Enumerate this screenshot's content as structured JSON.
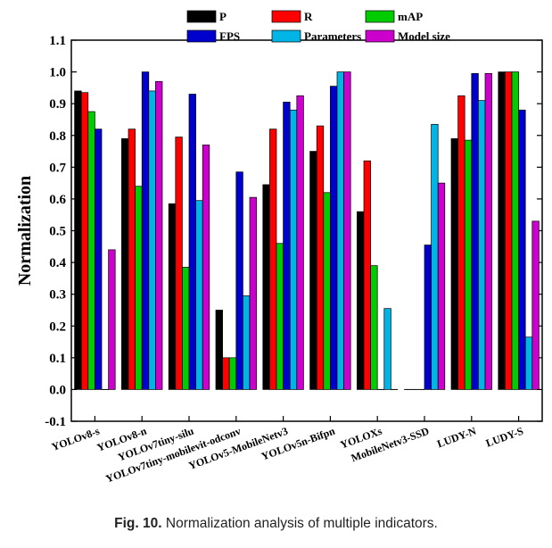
{
  "caption": {
    "label": "Fig. 10.",
    "text": "Normalization analysis of multiple indicators."
  },
  "chart_data": {
    "type": "bar",
    "title": "",
    "xlabel": "",
    "ylabel": "Normalization",
    "ylim": [
      -0.1,
      1.1
    ],
    "yticks": [
      "-0.1",
      "0.0",
      "0.1",
      "0.2",
      "0.3",
      "0.4",
      "0.5",
      "0.6",
      "0.7",
      "0.8",
      "0.9",
      "1.0",
      "1.1"
    ],
    "grid": false,
    "legend_position": "top",
    "categories": [
      "YOLOv8-s",
      "YOLOv8-n",
      "YOLOv7tiny-silu",
      "YOLOv7tiny-mobilevit-odconv",
      "YOLOv5-MobileNetv3",
      "YOLOv5n-Bifpn",
      "YOLOXs",
      "MobileNetv3-SSD",
      "LUDY-N",
      "LUDY-S"
    ],
    "series": [
      {
        "name": "P",
        "color": "#000000",
        "values": [
          0.94,
          0.79,
          0.585,
          0.25,
          0.645,
          0.75,
          0.56,
          0.0,
          0.79,
          1.0
        ]
      },
      {
        "name": "R",
        "color": "#ff0000",
        "values": [
          0.935,
          0.82,
          0.795,
          0.1,
          0.82,
          0.83,
          0.72,
          0.0,
          0.925,
          1.0
        ]
      },
      {
        "name": "mAP",
        "color": "#00cc00",
        "values": [
          0.875,
          0.64,
          0.385,
          0.1,
          0.46,
          0.62,
          0.39,
          0.0,
          0.785,
          1.0
        ]
      },
      {
        "name": "FPS",
        "color": "#0000cc",
        "values": [
          0.82,
          1.0,
          0.93,
          0.685,
          0.905,
          0.955,
          0.0,
          0.455,
          0.995,
          0.88
        ]
      },
      {
        "name": "Parameters",
        "color": "#00b4e6",
        "values": [
          0.0,
          0.94,
          0.595,
          0.295,
          0.88,
          1.0,
          0.255,
          0.835,
          0.91,
          0.165
        ]
      },
      {
        "name": "Model size",
        "color": "#cc00cc",
        "values": [
          0.44,
          0.97,
          0.77,
          0.605,
          0.925,
          1.0,
          0.0,
          0.65,
          0.995,
          0.53
        ]
      }
    ]
  }
}
